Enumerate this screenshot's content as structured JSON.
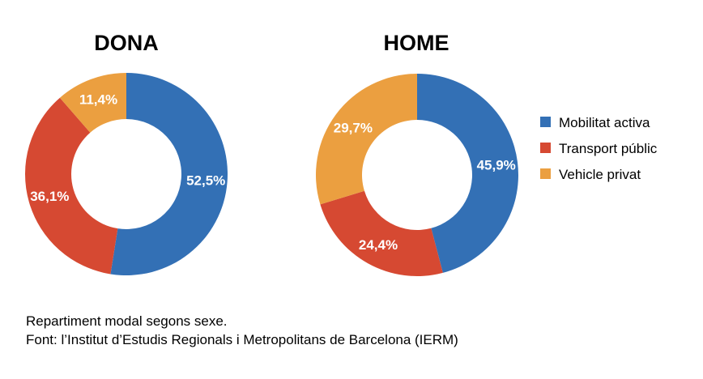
{
  "chart_data": [
    {
      "type": "pie",
      "donut": true,
      "title": "DONA",
      "categories": [
        "Mobilitat activa",
        "Transport públic",
        "Vehicle privat"
      ],
      "values": [
        52.5,
        36.1,
        11.4
      ],
      "labels": [
        "52,5%",
        "36,1%",
        "11,4%"
      ]
    },
    {
      "type": "pie",
      "donut": true,
      "title": "HOME",
      "categories": [
        "Mobilitat activa",
        "Transport públic",
        "Vehicle privat"
      ],
      "values": [
        45.9,
        24.4,
        29.7
      ],
      "labels": [
        "45,9%",
        "24,4%",
        "29,7%"
      ]
    }
  ],
  "legend": {
    "placement": "right",
    "items": [
      {
        "label": "Mobilitat activa",
        "color": "#3370b5"
      },
      {
        "label": "Transport públic",
        "color": "#d64932"
      },
      {
        "label": "Vehicle privat",
        "color": "#eb9f40"
      }
    ]
  },
  "footer": {
    "line1": "Repartiment modal segons sexe.",
    "line2": "Font: l’Institut d’Estudis Regionals i Metropolitans de Barcelona (IERM)"
  }
}
